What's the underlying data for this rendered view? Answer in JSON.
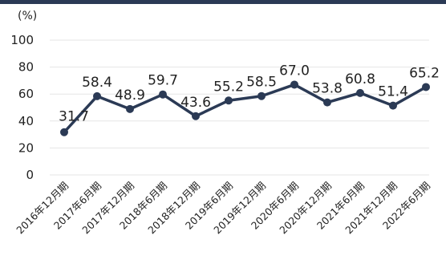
{
  "chart_data": {
    "type": "line",
    "unit_label": "(%)",
    "ylim": [
      0,
      100
    ],
    "yticks": [
      0,
      20,
      40,
      60,
      80,
      100
    ],
    "grid": true,
    "categories": [
      "2016年12月期",
      "2017年6月期",
      "2017年12月期",
      "2018年6月期",
      "2018年12月期",
      "2019年6月期",
      "2019年12月期",
      "2020年6月期",
      "2020年12月期",
      "2021年6月期",
      "2021年12月期",
      "2022年6月期"
    ],
    "series": [
      {
        "values": [
          31.7,
          58.4,
          48.9,
          59.7,
          43.6,
          55.2,
          58.5,
          67.0,
          53.8,
          60.8,
          51.4,
          65.2
        ],
        "labels": [
          "31.7",
          "58.4",
          "48.9",
          "59.7",
          "43.6",
          "55.2",
          "58.5",
          "67.0",
          "53.8",
          "60.8",
          "51.4",
          "65.2"
        ]
      }
    ],
    "colors": {
      "line": "#2b3a55",
      "grid": "#e6e6e6",
      "text": "#222222"
    }
  }
}
